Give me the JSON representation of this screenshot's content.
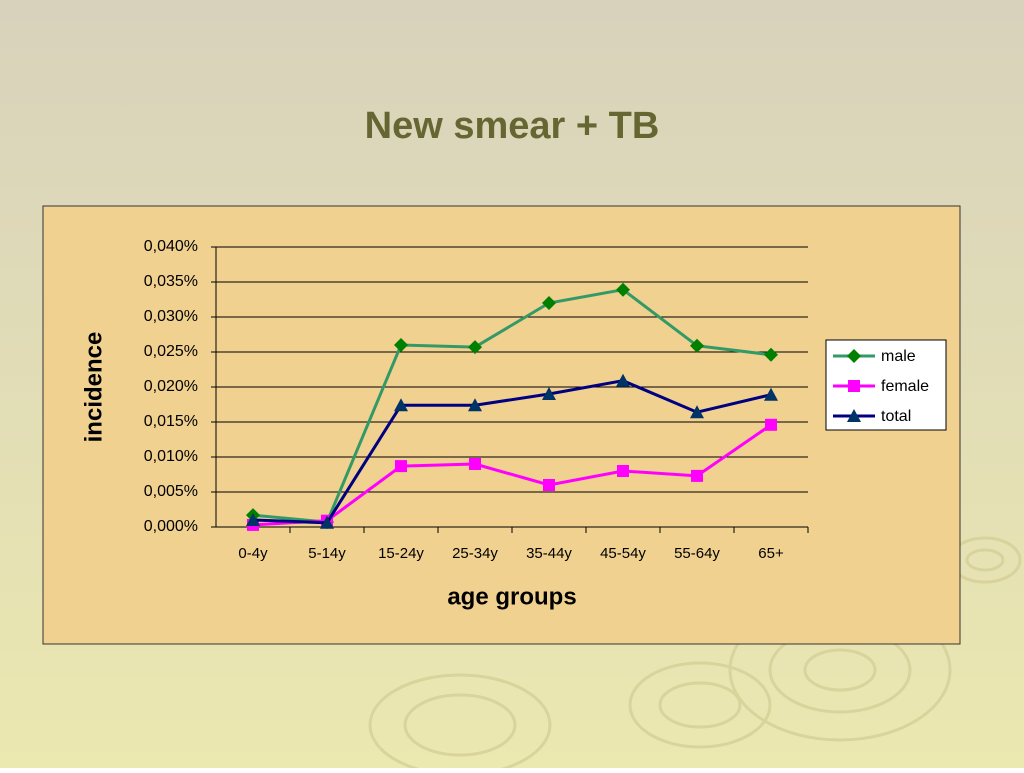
{
  "chart_data": {
    "type": "line",
    "title": "New smear + TB",
    "x_label": "age groups",
    "y_label": "incidence",
    "categories": [
      "0-4y",
      "5-14y",
      "15-24y",
      "25-34y",
      "35-44y",
      "45-54y",
      "55-64y",
      "65+"
    ],
    "series": [
      {
        "name": "male",
        "color": "#339966",
        "marker_color": "#008000",
        "marker": "diamond",
        "values": [
          0.0017,
          0.0007,
          0.026,
          0.0257,
          0.032,
          0.0339,
          0.0259,
          0.0246
        ]
      },
      {
        "name": "female",
        "color": "#ff00ff",
        "marker_color": "#ff00ff",
        "marker": "square",
        "values": [
          0.0003,
          0.0009,
          0.0087,
          0.009,
          0.006,
          0.008,
          0.0073,
          0.0146
        ]
      },
      {
        "name": "total",
        "color": "#000080",
        "marker_color": "#003366",
        "marker": "triangle",
        "values": [
          0.001,
          0.0006,
          0.0174,
          0.0174,
          0.019,
          0.0209,
          0.0164,
          0.0189
        ]
      }
    ],
    "ylim": [
      0,
      0.04
    ],
    "yticks": [
      {
        "value": 0,
        "label": "0,000%"
      },
      {
        "value": 0.005,
        "label": "0,005%"
      },
      {
        "value": 0.01,
        "label": "0,010%"
      },
      {
        "value": 0.015,
        "label": "0,015%"
      },
      {
        "value": 0.02,
        "label": "0,020%"
      },
      {
        "value": 0.025,
        "label": "0,025%"
      },
      {
        "value": 0.03,
        "label": "0,030%"
      },
      {
        "value": 0.035,
        "label": "0,035%"
      },
      {
        "value": 0.04,
        "label": "0,040%"
      }
    ],
    "grid": true,
    "legend": "right"
  }
}
